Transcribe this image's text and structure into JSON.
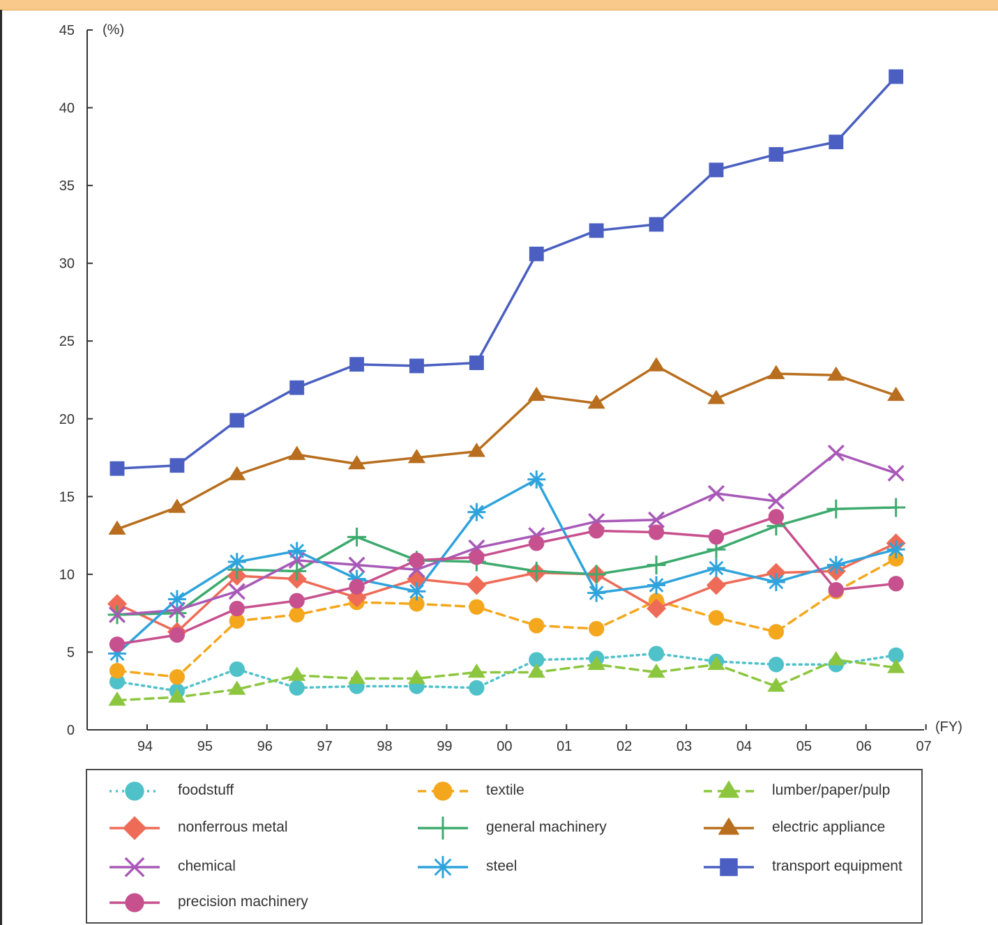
{
  "chart_data": {
    "type": "line",
    "ylabel": "(%)",
    "xlabel": "(FY)",
    "ylim": [
      0,
      45
    ],
    "yticks": [
      0,
      5,
      10,
      15,
      20,
      25,
      30,
      35,
      40,
      45
    ],
    "xticks": [
      "94",
      "95",
      "96",
      "97",
      "98",
      "99",
      "00",
      "01",
      "02",
      "03",
      "04",
      "05",
      "06",
      "07"
    ],
    "x": [
      "93",
      "94",
      "95",
      "96",
      "97",
      "98",
      "99",
      "00",
      "01",
      "02",
      "03",
      "04",
      "05",
      "06"
    ],
    "series": [
      {
        "name": "foodstuff",
        "color": "#4fc1c9",
        "marker": "circle",
        "dash": "dotted",
        "values": [
          3.1,
          2.5,
          3.9,
          2.7,
          2.8,
          2.8,
          2.7,
          4.5,
          4.6,
          4.9,
          4.4,
          4.2,
          4.2,
          4.8
        ]
      },
      {
        "name": "textile",
        "color": "#f4a71c",
        "marker": "circle",
        "dash": "dashed",
        "values": [
          3.8,
          3.4,
          7.0,
          7.4,
          8.2,
          8.1,
          7.9,
          6.7,
          6.5,
          8.3,
          7.2,
          6.3,
          8.9,
          11.0
        ]
      },
      {
        "name": "lumber/paper/pulp",
        "color": "#8cc63f",
        "marker": "triangle",
        "dash": "dashed",
        "values": [
          1.9,
          2.1,
          2.6,
          3.5,
          3.3,
          3.3,
          3.7,
          3.7,
          4.2,
          3.7,
          4.2,
          2.8,
          4.5,
          4.0
        ]
      },
      {
        "name": "nonferrous metal",
        "color": "#ee6b57",
        "marker": "diamond",
        "dash": "solid",
        "values": [
          8.1,
          6.3,
          9.9,
          9.7,
          8.5,
          9.7,
          9.3,
          10.1,
          10.0,
          7.8,
          9.3,
          10.1,
          10.2,
          12.0
        ]
      },
      {
        "name": "general machinery",
        "color": "#3daa6e",
        "marker": "plus",
        "dash": "solid",
        "values": [
          7.4,
          7.5,
          10.3,
          10.2,
          12.4,
          10.9,
          10.8,
          10.2,
          10.0,
          10.6,
          11.6,
          13.1,
          14.2,
          14.3
        ]
      },
      {
        "name": "electric appliance",
        "color": "#b86e1e",
        "marker": "triangle",
        "dash": "solid",
        "values": [
          12.9,
          14.3,
          16.4,
          17.7,
          17.1,
          17.5,
          17.9,
          21.5,
          21.0,
          23.4,
          21.3,
          22.9,
          22.8,
          21.5
        ]
      },
      {
        "name": "chemical",
        "color": "#a859b7",
        "marker": "cross",
        "dash": "solid",
        "values": [
          7.4,
          7.7,
          8.9,
          10.9,
          10.6,
          10.3,
          11.7,
          12.5,
          13.4,
          13.5,
          15.2,
          14.7,
          17.8,
          16.5
        ]
      },
      {
        "name": "steel",
        "color": "#2ea3dc",
        "marker": "asterisk",
        "dash": "solid",
        "values": [
          4.9,
          8.4,
          10.8,
          11.5,
          9.7,
          8.9,
          14.0,
          16.1,
          8.8,
          9.3,
          10.4,
          9.5,
          10.6,
          11.6
        ]
      },
      {
        "name": "transport equipment",
        "color": "#4a5fc1",
        "marker": "square",
        "dash": "solid",
        "values": [
          16.8,
          17.0,
          19.9,
          22.0,
          23.5,
          23.4,
          23.6,
          30.6,
          32.1,
          32.5,
          36.0,
          37.0,
          37.8,
          42.0
        ]
      },
      {
        "name": "precision machinery",
        "color": "#c7508e",
        "marker": "circle",
        "dash": "solid",
        "values": [
          5.5,
          6.1,
          7.8,
          8.3,
          9.2,
          10.9,
          11.1,
          12.0,
          12.8,
          12.7,
          12.4,
          13.7,
          9.0,
          9.4
        ]
      }
    ]
  }
}
